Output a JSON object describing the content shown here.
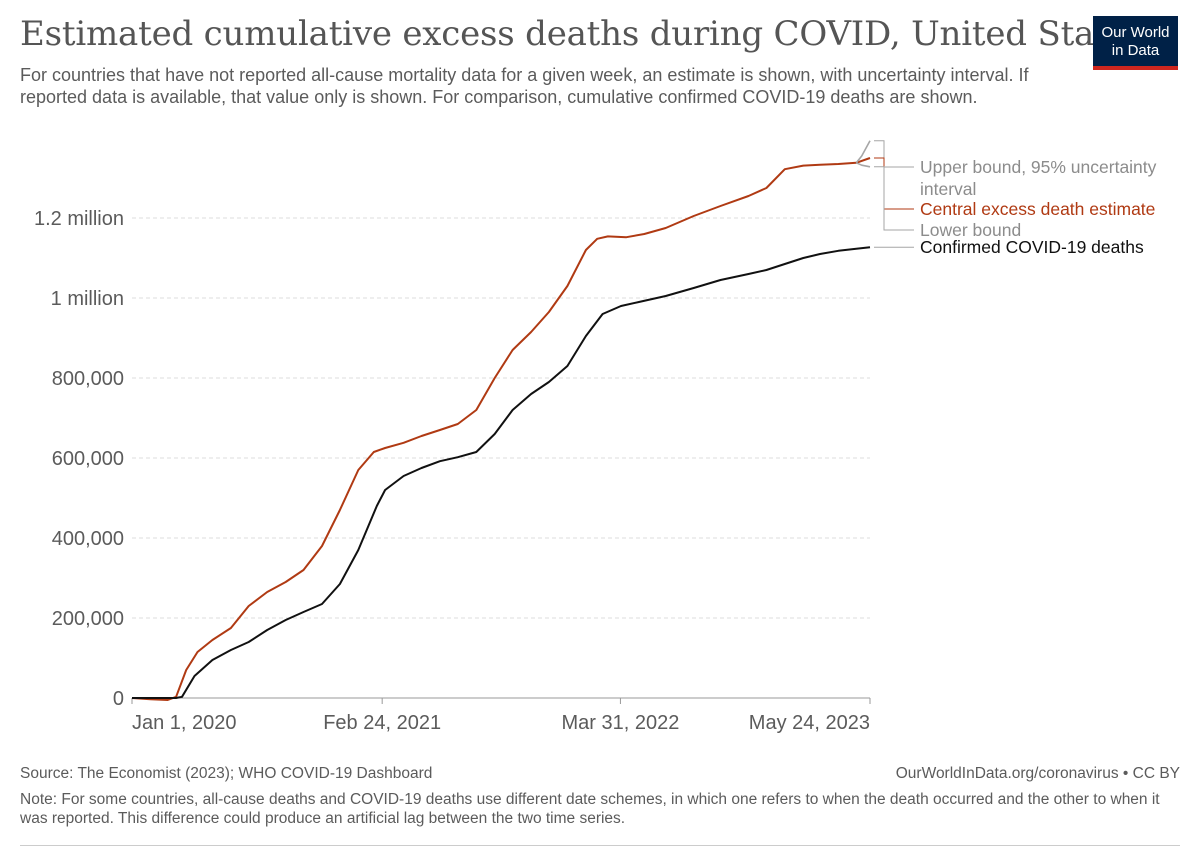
{
  "header": {
    "title": "Estimated cumulative excess deaths during COVID, United States",
    "subtitle": "For countries that have not reported all-cause mortality data for a given week, an estimate is shown, with uncertainty interval. If reported data is available, that value only is shown. For comparison, cumulative confirmed COVID-19 deaths are shown.",
    "logo_line1": "Our World",
    "logo_line2": "in Data"
  },
  "footer": {
    "source": "Source: The Economist (2023); WHO COVID-19 Dashboard",
    "url": "OurWorldInData.org/coronavirus • CC BY",
    "note": "Note: For some countries, all-cause deaths and COVID-19 deaths use different date schemes, in which one refers to when the death occurred and the other to when it was reported. This difference could produce an artificial lag between the two time series."
  },
  "colors": {
    "excess": "#b03a13",
    "confirmed": "#111111",
    "bounds": "#a6a6a6",
    "grid": "#dddddd",
    "text": "#5b5b5b"
  },
  "chart_data": {
    "type": "line",
    "x_start": "2020-01-01",
    "x_end": "2023-05-24",
    "ylim": [
      0,
      1400000
    ],
    "y_ticks": [
      {
        "value": 0,
        "label": "0"
      },
      {
        "value": 200000,
        "label": "200,000"
      },
      {
        "value": 400000,
        "label": "400,000"
      },
      {
        "value": 600000,
        "label": "600,000"
      },
      {
        "value": 800000,
        "label": "800,000"
      },
      {
        "value": 1000000,
        "label": "1 million"
      },
      {
        "value": 1200000,
        "label": "1.2 million"
      }
    ],
    "x_ticks": [
      {
        "date": "2020-01-01",
        "label": "Jan 1, 2020"
      },
      {
        "date": "2021-02-24",
        "label": "Feb 24, 2021"
      },
      {
        "date": "2022-03-31",
        "label": "Mar 31, 2022"
      },
      {
        "date": "2023-05-24",
        "label": "May 24, 2023"
      }
    ],
    "series": [
      {
        "name": "Central excess death estimate",
        "key": "excess",
        "points": [
          [
            "2020-01-01",
            0
          ],
          [
            "2020-02-01",
            -3000
          ],
          [
            "2020-03-01",
            -5000
          ],
          [
            "2020-03-15",
            3000
          ],
          [
            "2020-04-01",
            70000
          ],
          [
            "2020-04-20",
            115000
          ],
          [
            "2020-05-15",
            145000
          ],
          [
            "2020-06-15",
            175000
          ],
          [
            "2020-07-15",
            230000
          ],
          [
            "2020-08-15",
            265000
          ],
          [
            "2020-09-15",
            290000
          ],
          [
            "2020-10-15",
            320000
          ],
          [
            "2020-11-15",
            380000
          ],
          [
            "2020-12-15",
            470000
          ],
          [
            "2021-01-15",
            570000
          ],
          [
            "2021-02-10",
            615000
          ],
          [
            "2021-03-01",
            625000
          ],
          [
            "2021-04-01",
            638000
          ],
          [
            "2021-05-01",
            655000
          ],
          [
            "2021-06-01",
            670000
          ],
          [
            "2021-07-01",
            685000
          ],
          [
            "2021-08-01",
            720000
          ],
          [
            "2021-09-01",
            800000
          ],
          [
            "2021-10-01",
            870000
          ],
          [
            "2021-11-01",
            915000
          ],
          [
            "2021-12-01",
            965000
          ],
          [
            "2022-01-01",
            1030000
          ],
          [
            "2022-02-01",
            1120000
          ],
          [
            "2022-02-20",
            1148000
          ],
          [
            "2022-03-10",
            1154000
          ],
          [
            "2022-04-10",
            1152000
          ],
          [
            "2022-05-10",
            1160000
          ],
          [
            "2022-06-15",
            1175000
          ],
          [
            "2022-08-01",
            1205000
          ],
          [
            "2022-09-15",
            1230000
          ],
          [
            "2022-11-01",
            1255000
          ],
          [
            "2022-12-01",
            1275000
          ],
          [
            "2023-01-01",
            1322000
          ],
          [
            "2023-02-01",
            1331000
          ],
          [
            "2023-03-01",
            1333000
          ],
          [
            "2023-04-01",
            1335000
          ],
          [
            "2023-05-01",
            1338000
          ],
          [
            "2023-05-24",
            1350000
          ]
        ]
      },
      {
        "name": "Confirmed COVID-19 deaths",
        "key": "confirmed",
        "points": [
          [
            "2020-01-01",
            0
          ],
          [
            "2020-03-15",
            0
          ],
          [
            "2020-03-25",
            3000
          ],
          [
            "2020-04-15",
            55000
          ],
          [
            "2020-05-15",
            95000
          ],
          [
            "2020-06-15",
            120000
          ],
          [
            "2020-07-15",
            140000
          ],
          [
            "2020-08-15",
            170000
          ],
          [
            "2020-09-15",
            195000
          ],
          [
            "2020-10-15",
            215000
          ],
          [
            "2020-11-15",
            235000
          ],
          [
            "2020-12-15",
            285000
          ],
          [
            "2021-01-15",
            370000
          ],
          [
            "2021-02-15",
            480000
          ],
          [
            "2021-03-01",
            520000
          ],
          [
            "2021-04-01",
            555000
          ],
          [
            "2021-05-01",
            575000
          ],
          [
            "2021-06-01",
            592000
          ],
          [
            "2021-07-01",
            602000
          ],
          [
            "2021-08-01",
            615000
          ],
          [
            "2021-09-01",
            660000
          ],
          [
            "2021-10-01",
            720000
          ],
          [
            "2021-11-01",
            760000
          ],
          [
            "2021-12-01",
            790000
          ],
          [
            "2022-01-01",
            830000
          ],
          [
            "2022-02-01",
            905000
          ],
          [
            "2022-03-01",
            960000
          ],
          [
            "2022-04-01",
            980000
          ],
          [
            "2022-05-01",
            990000
          ],
          [
            "2022-06-15",
            1005000
          ],
          [
            "2022-08-01",
            1025000
          ],
          [
            "2022-09-15",
            1045000
          ],
          [
            "2022-11-01",
            1060000
          ],
          [
            "2022-12-01",
            1070000
          ],
          [
            "2023-01-01",
            1085000
          ],
          [
            "2023-02-01",
            1100000
          ],
          [
            "2023-03-01",
            1110000
          ],
          [
            "2023-04-01",
            1118000
          ],
          [
            "2023-05-01",
            1123000
          ],
          [
            "2023-05-24",
            1127000
          ]
        ]
      },
      {
        "name": "Upper bound, 95% uncertainty interval",
        "key": "upper",
        "points": [
          [
            "2023-05-01",
            1338000
          ],
          [
            "2023-05-10",
            1355000
          ],
          [
            "2023-05-24",
            1393000
          ]
        ]
      },
      {
        "name": "Lower bound",
        "key": "lower",
        "points": [
          [
            "2023-05-01",
            1338000
          ],
          [
            "2023-05-10",
            1332000
          ],
          [
            "2023-05-24",
            1328000
          ]
        ]
      }
    ],
    "legend": {
      "upper_line1": "Upper bound, 95% uncertainty",
      "upper_line2": "interval",
      "central": "Central excess death estimate",
      "lower": "Lower bound",
      "confirmed": "Confirmed COVID-19 deaths"
    }
  }
}
